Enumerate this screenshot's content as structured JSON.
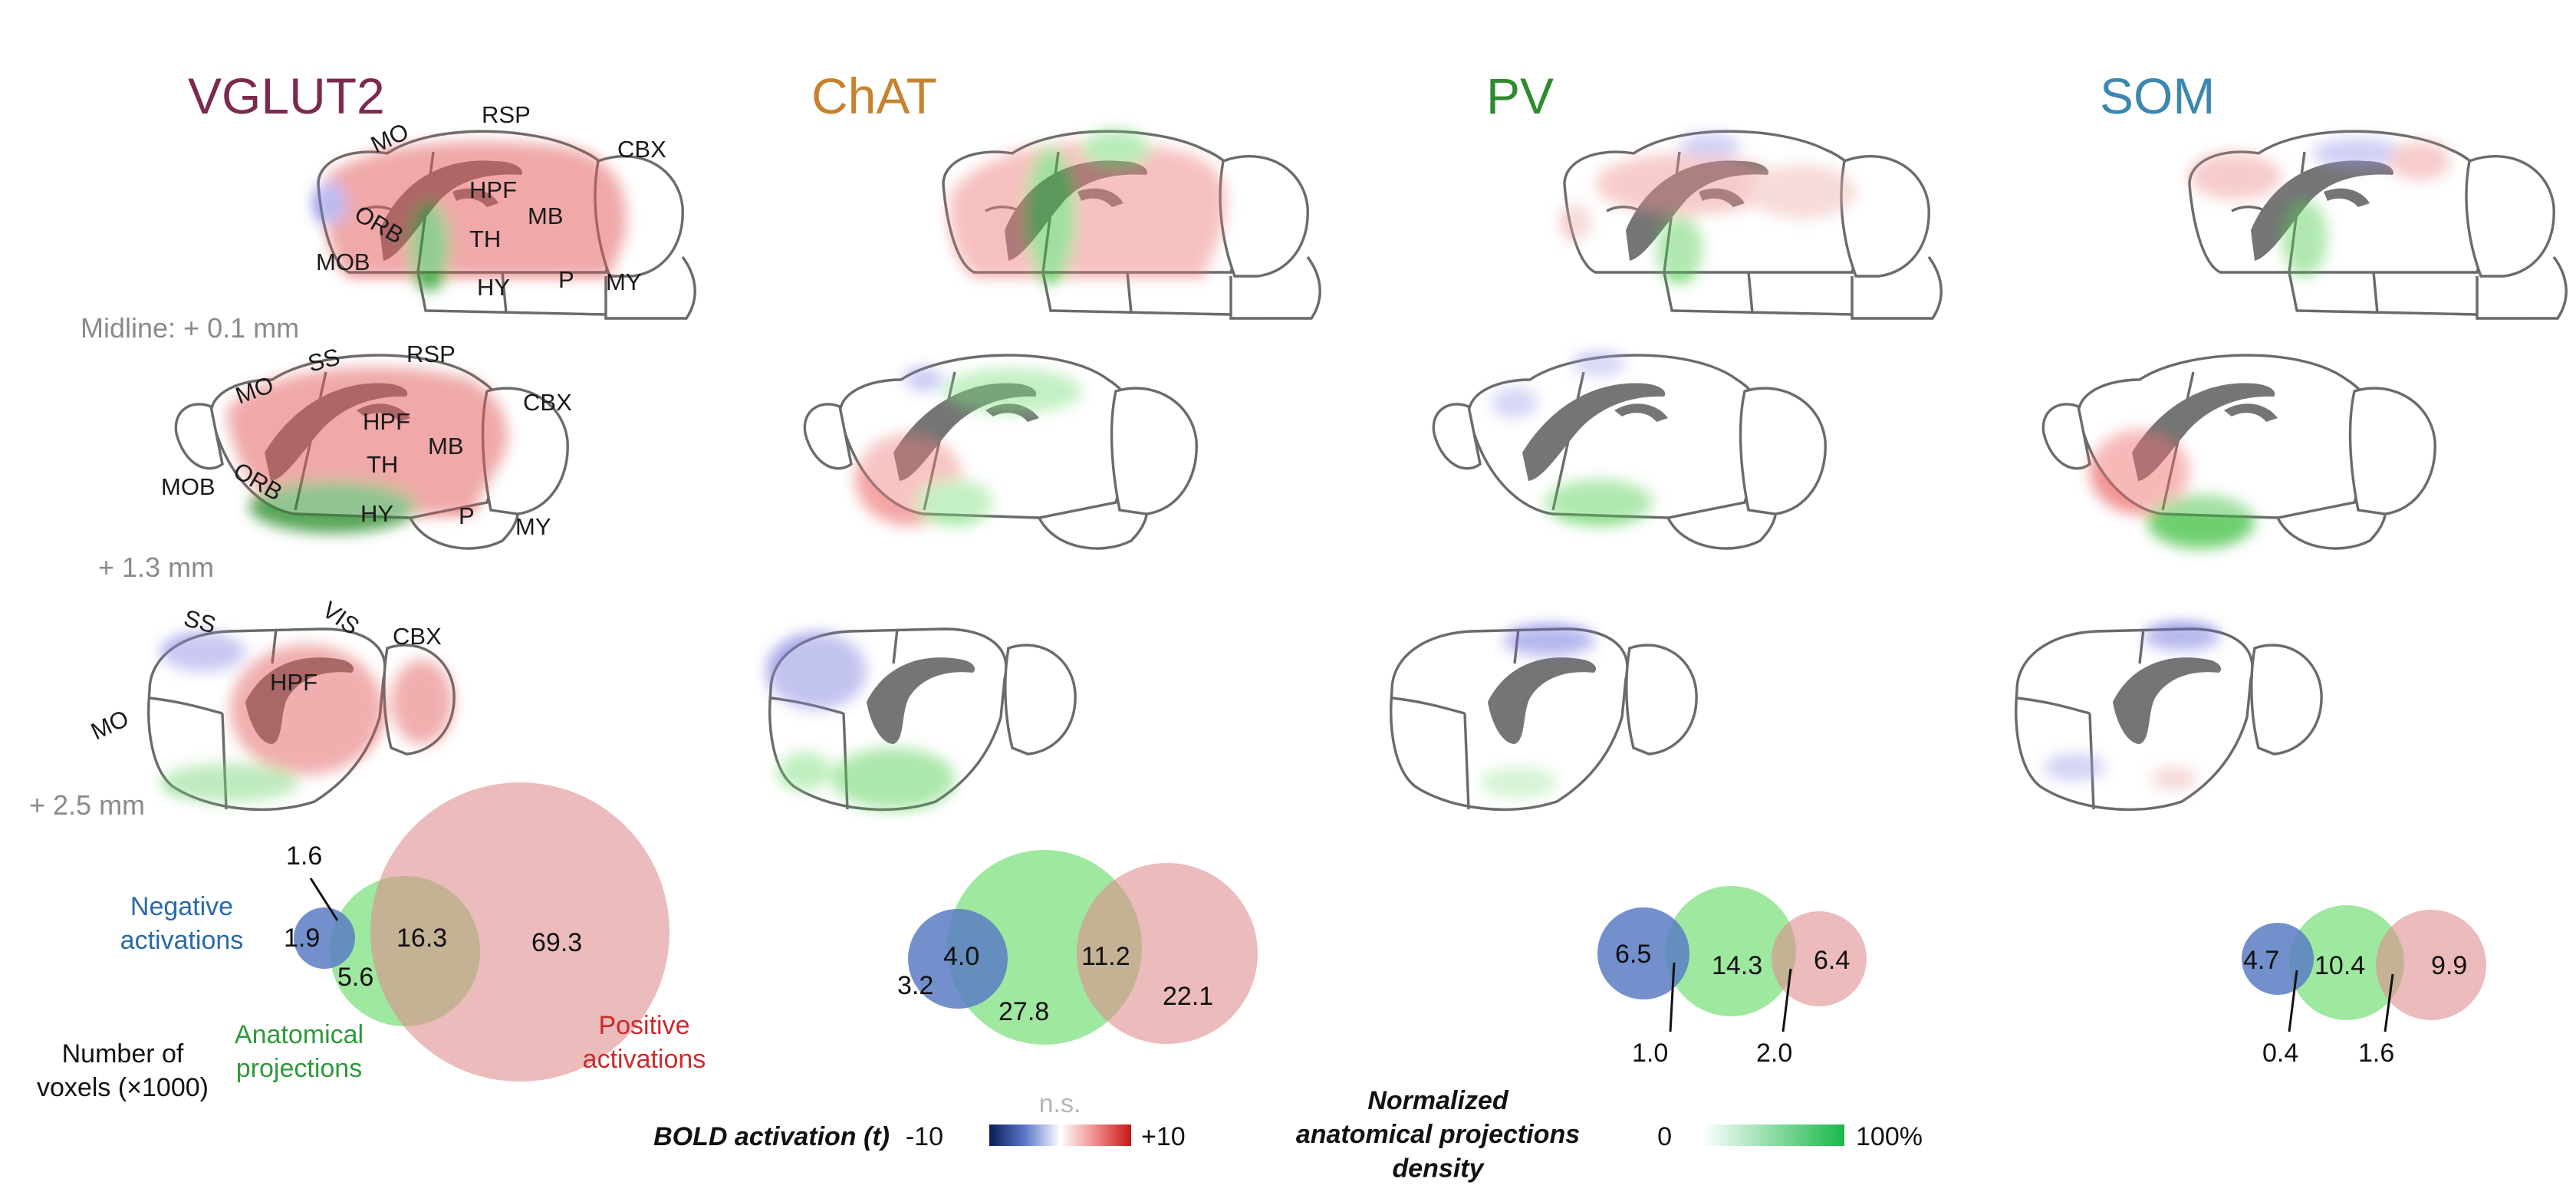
{
  "columns": [
    {
      "title": "VGLUT2",
      "color": "#7b2a4f"
    },
    {
      "title": "ChAT",
      "color": "#c7822f"
    },
    {
      "title": "PV",
      "color": "#2e8b2e"
    },
    {
      "title": "SOM",
      "color": "#3c87b0"
    }
  ],
  "section_levels": [
    "Midline: + 0.1 mm",
    "+ 1.3 mm",
    "+ 2.5 mm"
  ],
  "region_labels": {
    "row1": [
      "MO",
      "RSP",
      "CBX",
      "HPF",
      "ORB",
      "MB",
      "TH",
      "MOB",
      "HY",
      "P",
      "MY"
    ],
    "row2": [
      "MO",
      "SS",
      "RSP",
      "CBX",
      "HPF",
      "ORB",
      "TH",
      "MB",
      "MOB",
      "HY",
      "P",
      "MY"
    ],
    "row3": [
      "SS",
      "VIS",
      "CBX",
      "HPF",
      "MO"
    ]
  },
  "venn": [
    {
      "neg": "1.9",
      "neg_only_callout": "1.6",
      "overlap_neg_anat": "5.6",
      "anat_pos": "16.3",
      "pos": "69.3"
    },
    {
      "neg": "4.0",
      "neg_outer": "3.2",
      "anat": "27.8",
      "anat_pos": "11.2",
      "pos": "22.1"
    },
    {
      "neg": "6.5",
      "anat": "14.3",
      "pos": "6.4",
      "callout_a": "1.0",
      "callout_b": "2.0"
    },
    {
      "neg": "4.7",
      "anat": "10.4",
      "pos": "9.9",
      "callout_a": "0.4",
      "callout_b": "1.6"
    }
  ],
  "venn_legend": {
    "negative": "Negative activations",
    "anatomical": "Anatomical projections",
    "positive": "Positive activations",
    "voxels": "Number of voxels (×1000)"
  },
  "colorbars": {
    "bold_label": "BOLD activation (t)",
    "bold_min": "-10",
    "bold_max": "+10",
    "ns": "n.s.",
    "anat_label": "Normalized anatomical projections density",
    "anat_min": "0",
    "anat_max": "100%"
  },
  "colors": {
    "negative": "#7a93c9",
    "anatomical": "#7fe07f",
    "positive": "#e08e8e",
    "outline": "#6b6b6b"
  }
}
